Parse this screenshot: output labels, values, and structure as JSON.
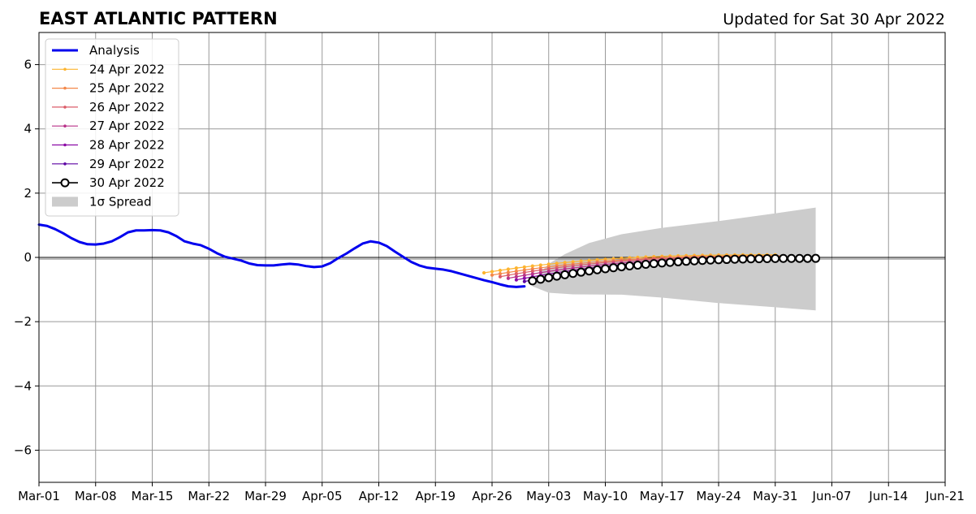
{
  "chart_data": {
    "type": "line",
    "title": "EAST ATLANTIC PATTERN",
    "subtitle": "Updated for Sat 30 Apr 2022",
    "xlabel": "",
    "ylabel": "",
    "x_range": [
      "2022-03-01",
      "2022-06-21"
    ],
    "ylim": [
      -7,
      7
    ],
    "x_ticks": [
      "Mar-01",
      "Mar-08",
      "Mar-15",
      "Mar-22",
      "Mar-29",
      "Apr-05",
      "Apr-12",
      "Apr-19",
      "Apr-26",
      "May-03",
      "May-10",
      "May-17",
      "May-24",
      "May-31",
      "Jun-07",
      "Jun-14",
      "Jun-21"
    ],
    "y_ticks": [
      -6,
      -4,
      -2,
      0,
      2,
      4,
      6
    ],
    "y_tick_labels": [
      "−6",
      "−4",
      "−2",
      "0",
      "2",
      "4",
      "6"
    ],
    "grid": true,
    "legend_position": "top-left",
    "zero_line": true,
    "analysis": {
      "name": "Analysis",
      "color": "#0000ee",
      "points": [
        [
          "2022-03-01",
          1.02
        ],
        [
          "2022-03-02",
          0.98
        ],
        [
          "2022-03-03",
          0.88
        ],
        [
          "2022-03-04",
          0.75
        ],
        [
          "2022-03-05",
          0.6
        ],
        [
          "2022-03-06",
          0.48
        ],
        [
          "2022-03-07",
          0.41
        ],
        [
          "2022-03-08",
          0.4
        ],
        [
          "2022-03-09",
          0.43
        ],
        [
          "2022-03-10",
          0.5
        ],
        [
          "2022-03-11",
          0.63
        ],
        [
          "2022-03-12",
          0.78
        ],
        [
          "2022-03-13",
          0.84
        ],
        [
          "2022-03-14",
          0.84
        ],
        [
          "2022-03-15",
          0.85
        ],
        [
          "2022-03-16",
          0.84
        ],
        [
          "2022-03-17",
          0.78
        ],
        [
          "2022-03-18",
          0.66
        ],
        [
          "2022-03-19",
          0.5
        ],
        [
          "2022-03-20",
          0.43
        ],
        [
          "2022-03-21",
          0.38
        ],
        [
          "2022-03-22",
          0.27
        ],
        [
          "2022-03-23",
          0.13
        ],
        [
          "2022-03-24",
          0.02
        ],
        [
          "2022-03-25",
          -0.04
        ],
        [
          "2022-03-26",
          -0.1
        ],
        [
          "2022-03-27",
          -0.19
        ],
        [
          "2022-03-28",
          -0.24
        ],
        [
          "2022-03-29",
          -0.25
        ],
        [
          "2022-03-30",
          -0.25
        ],
        [
          "2022-03-31",
          -0.22
        ],
        [
          "2022-04-01",
          -0.2
        ],
        [
          "2022-04-02",
          -0.22
        ],
        [
          "2022-04-03",
          -0.27
        ],
        [
          "2022-04-04",
          -0.3
        ],
        [
          "2022-04-05",
          -0.28
        ],
        [
          "2022-04-06",
          -0.18
        ],
        [
          "2022-04-07",
          -0.02
        ],
        [
          "2022-04-08",
          0.12
        ],
        [
          "2022-04-09",
          0.28
        ],
        [
          "2022-04-10",
          0.43
        ],
        [
          "2022-04-11",
          0.5
        ],
        [
          "2022-04-12",
          0.46
        ],
        [
          "2022-04-13",
          0.35
        ],
        [
          "2022-04-14",
          0.18
        ],
        [
          "2022-04-15",
          0.02
        ],
        [
          "2022-04-16",
          -0.14
        ],
        [
          "2022-04-17",
          -0.25
        ],
        [
          "2022-04-18",
          -0.32
        ],
        [
          "2022-04-19",
          -0.35
        ],
        [
          "2022-04-20",
          -0.38
        ],
        [
          "2022-04-21",
          -0.43
        ],
        [
          "2022-04-22",
          -0.5
        ],
        [
          "2022-04-23",
          -0.57
        ],
        [
          "2022-04-24",
          -0.64
        ],
        [
          "2022-04-25",
          -0.71
        ],
        [
          "2022-04-26",
          -0.77
        ],
        [
          "2022-04-27",
          -0.84
        ],
        [
          "2022-04-28",
          -0.9
        ],
        [
          "2022-04-29",
          -0.92
        ],
        [
          "2022-04-30",
          -0.9
        ]
      ]
    },
    "forecasts": [
      {
        "name": "24 Apr 2022",
        "color": "#fdb42f",
        "start": "2022-04-25",
        "y0": -0.48,
        "y_end": 0.08,
        "end": "2022-05-31"
      },
      {
        "name": "25 Apr 2022",
        "color": "#f48849",
        "start": "2022-04-26",
        "y0": -0.55,
        "y_end": 0.05,
        "end": "2022-06-01"
      },
      {
        "name": "26 Apr 2022",
        "color": "#db5c68",
        "start": "2022-04-27",
        "y0": -0.6,
        "y_end": 0.03,
        "end": "2022-06-01"
      },
      {
        "name": "27 Apr 2022",
        "color": "#b83289",
        "start": "2022-04-28",
        "y0": -0.65,
        "y_end": 0.0,
        "end": "2022-06-02"
      },
      {
        "name": "28 Apr 2022",
        "color": "#8b0aa5",
        "start": "2022-04-29",
        "y0": -0.7,
        "y_end": -0.02,
        "end": "2022-06-03"
      },
      {
        "name": "29 Apr 2022",
        "color": "#5b02a3",
        "start": "2022-04-30",
        "y0": -0.75,
        "y_end": -0.04,
        "end": "2022-06-04"
      },
      {
        "name": "30 Apr 2022",
        "color": "#000000",
        "start": "2022-05-01",
        "y0": -0.73,
        "y_end": -0.03,
        "end": "2022-06-05",
        "markers": "open-circle"
      }
    ],
    "spread": {
      "name": "1σ Spread",
      "color": "#cccccc",
      "upper": [
        [
          "2022-05-01",
          -0.75
        ],
        [
          "2022-05-03",
          -0.2
        ],
        [
          "2022-05-05",
          0.1
        ],
        [
          "2022-05-08",
          0.45
        ],
        [
          "2022-05-12",
          0.72
        ],
        [
          "2022-05-17",
          0.92
        ],
        [
          "2022-05-24",
          1.13
        ],
        [
          "2022-05-31",
          1.37
        ],
        [
          "2022-06-05",
          1.55
        ]
      ],
      "lower": [
        [
          "2022-05-01",
          -0.9
        ],
        [
          "2022-05-03",
          -1.1
        ],
        [
          "2022-05-06",
          -1.15
        ],
        [
          "2022-05-12",
          -1.16
        ],
        [
          "2022-05-17",
          -1.25
        ],
        [
          "2022-05-24",
          -1.42
        ],
        [
          "2022-05-31",
          -1.55
        ],
        [
          "2022-06-05",
          -1.65
        ]
      ]
    },
    "legend": [
      {
        "label": "Analysis",
        "kind": "analysis",
        "color": "#0000ee"
      },
      {
        "label": "24 Apr 2022",
        "kind": "forecast",
        "color": "#fdb42f"
      },
      {
        "label": "25 Apr 2022",
        "kind": "forecast",
        "color": "#f48849"
      },
      {
        "label": "26 Apr 2022",
        "kind": "forecast",
        "color": "#db5c68"
      },
      {
        "label": "27 Apr 2022",
        "kind": "forecast",
        "color": "#b83289"
      },
      {
        "label": "28 Apr 2022",
        "kind": "forecast",
        "color": "#8b0aa5"
      },
      {
        "label": "29 Apr 2022",
        "kind": "forecast",
        "color": "#5b02a3"
      },
      {
        "label": "30 Apr 2022",
        "kind": "latest",
        "color": "#000000"
      },
      {
        "label": "1σ Spread",
        "kind": "spread",
        "color": "#cccccc"
      }
    ]
  }
}
